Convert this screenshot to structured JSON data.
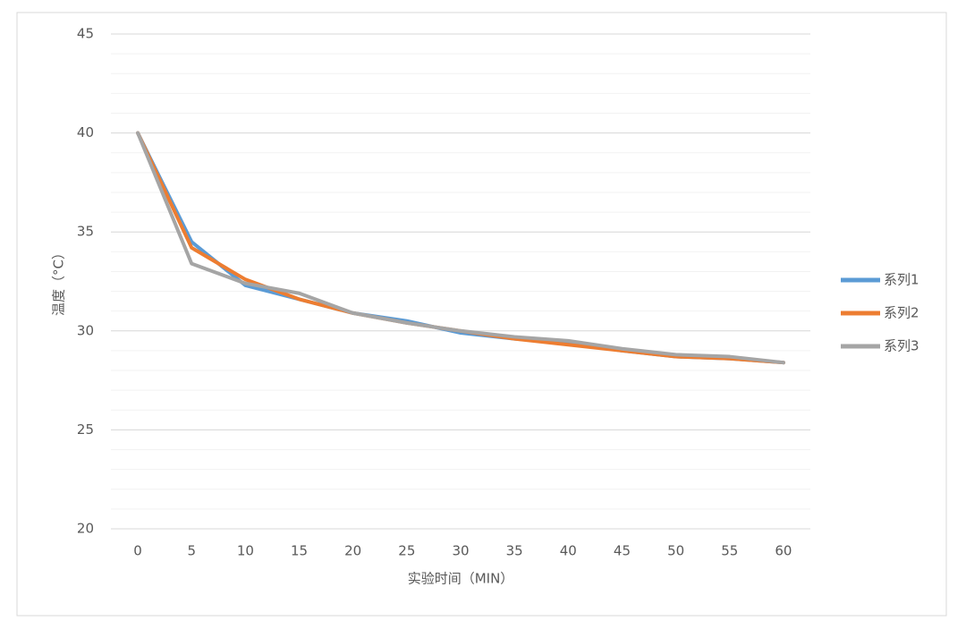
{
  "chart_data": {
    "type": "line",
    "x_label": "实验时间（MIN）",
    "y_label": "温度（°C）",
    "categories": [
      "0",
      "5",
      "10",
      "15",
      "20",
      "25",
      "30",
      "35",
      "40",
      "45",
      "50",
      "55",
      "60"
    ],
    "series": [
      {
        "name": "系列1",
        "color": "#5b9bd5",
        "values": [
          40,
          34.5,
          32.3,
          31.6,
          30.9,
          30.5,
          29.9,
          29.6,
          29.4,
          29.0,
          28.7,
          28.6,
          28.4
        ]
      },
      {
        "name": "系列2",
        "color": "#ed7d31",
        "values": [
          40,
          34.2,
          32.6,
          31.6,
          30.9,
          30.4,
          30.0,
          29.6,
          29.3,
          29.0,
          28.7,
          28.6,
          28.4
        ]
      },
      {
        "name": "系列3",
        "color": "#a5a5a5",
        "values": [
          40,
          33.4,
          32.4,
          31.9,
          30.9,
          30.4,
          30.0,
          29.7,
          29.5,
          29.1,
          28.8,
          28.7,
          28.4
        ]
      }
    ],
    "ylim": [
      20,
      45
    ],
    "yticks": [
      20,
      25,
      30,
      35,
      40,
      45
    ],
    "minor_grid_step": 1,
    "grid": true,
    "legend": "right"
  }
}
